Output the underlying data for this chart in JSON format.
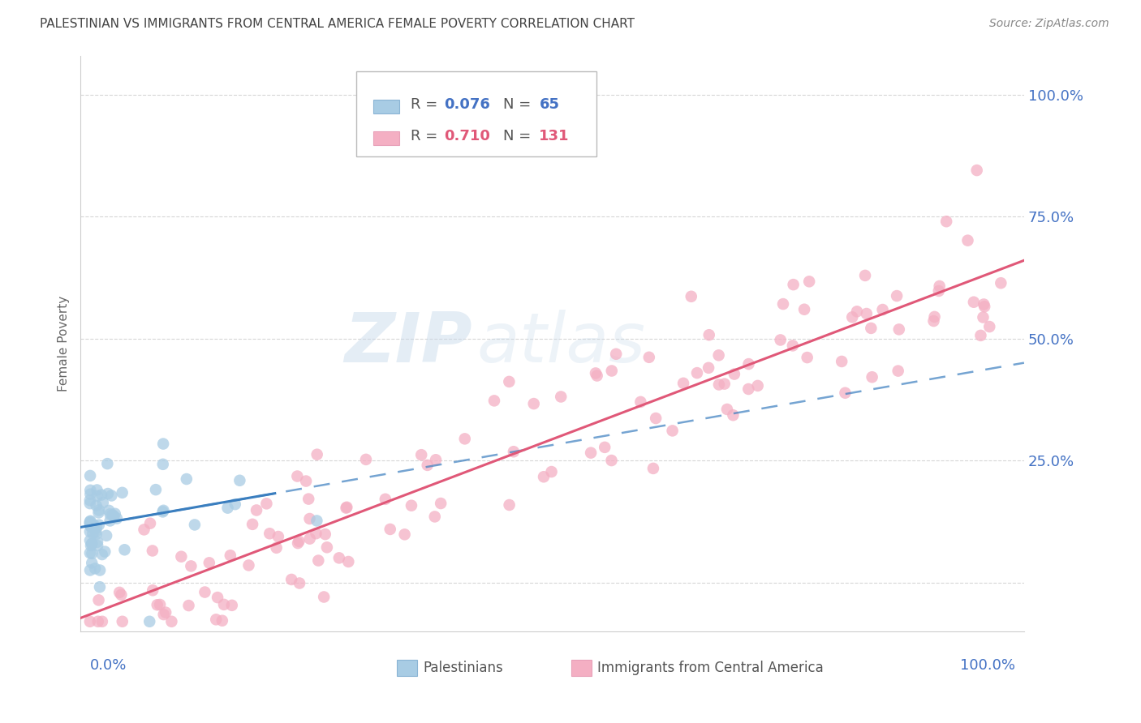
{
  "title": "PALESTINIAN VS IMMIGRANTS FROM CENTRAL AMERICA FEMALE POVERTY CORRELATION CHART",
  "source": "Source: ZipAtlas.com",
  "ylabel": "Female Poverty",
  "yticks": [
    0.0,
    0.25,
    0.5,
    0.75,
    1.0
  ],
  "ytick_labels": [
    "",
    "25.0%",
    "50.0%",
    "75.0%",
    "100.0%"
  ],
  "watermark_zip": "ZIP",
  "watermark_atlas": "atlas",
  "blue_color": "#a8cce4",
  "pink_color": "#f4afc3",
  "blue_line_color": "#3a7ebf",
  "pink_line_color": "#e05878",
  "blue_r": 0.076,
  "pink_r": 0.71,
  "blue_n": 65,
  "pink_n": 131,
  "pink_slope": 0.72,
  "pink_intercept": -0.055,
  "blue_slope": 0.13,
  "blue_intercept": 0.115,
  "xlim": [
    -0.01,
    1.01
  ],
  "ylim": [
    -0.1,
    1.08
  ],
  "grid_color": "#cccccc",
  "legend_text_color": "#4472c4",
  "legend_pink_text_color": "#e05878",
  "axis_label_color": "#4472c4",
  "title_color": "#444444",
  "source_color": "#888888"
}
